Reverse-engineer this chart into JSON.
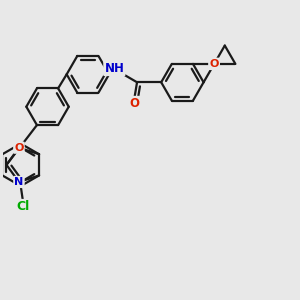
{
  "bg_color": "#e8e8e8",
  "bond_color": "#1a1a1a",
  "N_color": "#0000cc",
  "O_color": "#dd2200",
  "Cl_color": "#00aa00",
  "line_width": 1.6,
  "fig_size": [
    3.0,
    3.0
  ],
  "dpi": 100,
  "xlim": [
    0,
    10
  ],
  "ylim": [
    0,
    10
  ]
}
